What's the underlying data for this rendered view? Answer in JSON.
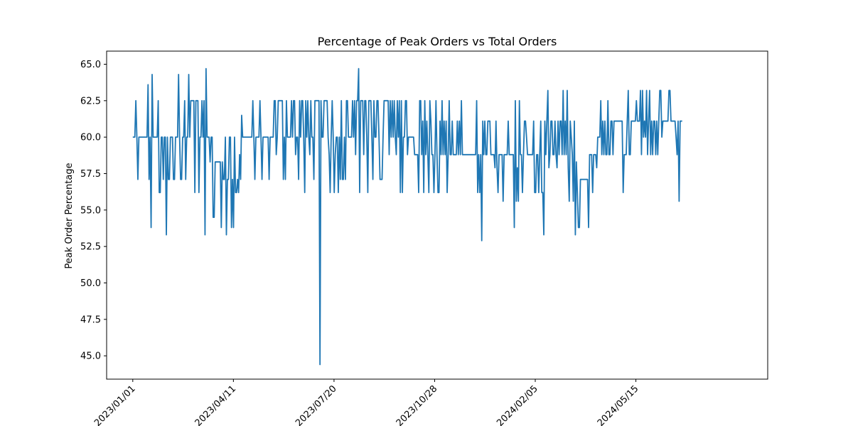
{
  "chart_data": {
    "type": "line",
    "title": "Percentage of Peak Orders vs Total Orders",
    "xlabel": "",
    "ylabel": "Peak Order Percentage",
    "xlim": [
      "2022-12-06",
      "2024-09-23"
    ],
    "ylim": [
      43.4,
      65.9
    ],
    "grid": false,
    "line_color": "#1f77b4",
    "x_ticks": [
      "2023/01/01",
      "2023/04/11",
      "2023/07/20",
      "2023/10/28",
      "2024/02/05",
      "2024/05/15"
    ],
    "y_ticks": [
      "45.0",
      "47.5",
      "50.0",
      "52.5",
      "55.0",
      "57.5",
      "60.0",
      "62.5",
      "65.0"
    ],
    "series": [
      {
        "x_start": "2023-01-01",
        "x_end": "2024-06-30",
        "frequency": "daily",
        "values": [
          60.0,
          60.0,
          60.0,
          62.5,
          60.0,
          57.1,
          60.0,
          60.0,
          60.0,
          60.0,
          60.0,
          60.0,
          60.0,
          60.0,
          60.0,
          63.6,
          57.1,
          60.0,
          53.8,
          64.3,
          60.0,
          60.0,
          60.0,
          60.0,
          60.0,
          62.5,
          56.2,
          56.2,
          60.0,
          60.0,
          57.1,
          60.0,
          60.0,
          53.3,
          60.0,
          57.1,
          57.1,
          60.0,
          60.0,
          60.0,
          57.1,
          57.1,
          60.0,
          60.0,
          60.0,
          64.3,
          60.0,
          57.1,
          57.1,
          60.0,
          60.0,
          62.5,
          57.1,
          60.0,
          60.0,
          64.3,
          60.0,
          62.5,
          62.5,
          62.5,
          62.5,
          56.2,
          62.5,
          62.5,
          62.5,
          56.2,
          60.0,
          60.0,
          62.5,
          60.0,
          62.5,
          53.3,
          64.7,
          60.0,
          60.0,
          60.0,
          58.3,
          60.0,
          60.0,
          54.5,
          54.5,
          58.3,
          58.3,
          58.3,
          58.3,
          58.3,
          58.3,
          53.8,
          58.3,
          57.1,
          57.1,
          60.0,
          53.3,
          57.1,
          57.1,
          60.0,
          60.0,
          53.8,
          57.1,
          53.8,
          60.0,
          56.2,
          56.2,
          57.1,
          56.2,
          58.8,
          57.1,
          61.5,
          60.0,
          60.0,
          60.0,
          60.0,
          60.0,
          60.0,
          60.0,
          60.0,
          60.0,
          60.0,
          62.5,
          60.0,
          57.1,
          60.0,
          60.0,
          60.0,
          60.0,
          62.5,
          60.0,
          57.1,
          60.0,
          60.0,
          60.0,
          60.0,
          60.0,
          60.0,
          57.1,
          60.0,
          60.0,
          60.0,
          60.0,
          62.5,
          62.5,
          58.8,
          60.0,
          62.5,
          62.5,
          62.5,
          62.5,
          62.5,
          57.1,
          60.0,
          57.1,
          62.5,
          60.0,
          60.0,
          60.0,
          60.0,
          62.5,
          60.0,
          62.5,
          62.5,
          58.8,
          60.0,
          60.0,
          57.1,
          62.5,
          60.0,
          62.5,
          62.5,
          60.0,
          56.2,
          62.5,
          60.0,
          62.5,
          60.0,
          58.8,
          62.5,
          60.0,
          60.0,
          57.1,
          62.5,
          62.5,
          62.5,
          62.5,
          62.5,
          44.4,
          62.5,
          60.0,
          60.0,
          62.5,
          62.5,
          62.5,
          62.5,
          60.0,
          58.8,
          56.2,
          60.0,
          62.5,
          60.0,
          56.2,
          58.8,
          60.0,
          60.0,
          56.2,
          60.0,
          57.1,
          62.5,
          57.1,
          57.1,
          60.0,
          57.1,
          62.5,
          62.5,
          60.0,
          60.0,
          60.0,
          60.0,
          62.5,
          60.0,
          62.5,
          58.8,
          62.5,
          62.5,
          64.7,
          56.2,
          62.5,
          62.5,
          62.5,
          58.8,
          62.5,
          62.5,
          60.0,
          56.2,
          62.5,
          62.5,
          62.5,
          60.0,
          57.1,
          62.5,
          60.0,
          60.0,
          62.5,
          62.5,
          60.0,
          57.1,
          57.1,
          57.1,
          60.0,
          62.5,
          62.5,
          62.5,
          62.5,
          62.5,
          58.8,
          62.5,
          60.0,
          62.5,
          60.0,
          62.5,
          60.0,
          58.8,
          62.5,
          60.0,
          62.5,
          56.2,
          62.5,
          56.2,
          60.0,
          60.0,
          62.5,
          62.5,
          58.8,
          60.0,
          60.0,
          60.0,
          60.0,
          60.0,
          60.0,
          58.8,
          58.8,
          58.8,
          58.8,
          56.2,
          62.5,
          62.5,
          58.8,
          61.1,
          56.2,
          62.5,
          58.8,
          61.1,
          58.8,
          56.2,
          62.5,
          61.1,
          58.8,
          58.8,
          56.2,
          58.8,
          62.5,
          58.8,
          56.2,
          56.2,
          61.1,
          58.8,
          62.5,
          58.8,
          61.1,
          58.8,
          61.1,
          56.2,
          58.8,
          62.5,
          58.8,
          58.8,
          61.1,
          58.8,
          58.8,
          58.8,
          58.8,
          61.1,
          58.8,
          61.1,
          58.8,
          62.5,
          58.8,
          58.8,
          58.8,
          58.8,
          58.8,
          58.8,
          58.8,
          58.8,
          58.8,
          58.8,
          58.8,
          58.8,
          58.8,
          58.8,
          62.5,
          56.2,
          58.8,
          56.2,
          58.8,
          52.9,
          61.1,
          58.8,
          61.1,
          58.8,
          58.8,
          61.1,
          61.1,
          61.1,
          58.8,
          58.8,
          58.8,
          58.8,
          57.9,
          61.1,
          57.9,
          56.2,
          58.8,
          58.8,
          58.8,
          58.8,
          55.6,
          58.8,
          58.8,
          58.8,
          58.8,
          61.1,
          58.8,
          58.8,
          58.8,
          58.8,
          58.8,
          53.8,
          62.5,
          55.6,
          57.9,
          55.6,
          62.5,
          58.8,
          58.8,
          56.2,
          58.8,
          61.1,
          61.1,
          60.0,
          58.8,
          58.8,
          58.8,
          58.8,
          58.8,
          58.8,
          61.1,
          56.2,
          56.2,
          58.8,
          58.8,
          56.2,
          58.8,
          61.1,
          56.2,
          56.2,
          53.3,
          61.1,
          58.8,
          61.1,
          63.2,
          57.9,
          58.8,
          61.1,
          61.1,
          58.8,
          58.8,
          61.1,
          58.8,
          57.9,
          61.1,
          58.8,
          61.1,
          61.1,
          58.8,
          63.2,
          58.8,
          61.1,
          58.8,
          63.2,
          57.9,
          55.6,
          61.1,
          60.0,
          58.8,
          55.6,
          61.1,
          53.3,
          58.3,
          56.2,
          53.8,
          53.8,
          57.1,
          57.1,
          57.1,
          57.1,
          57.1,
          57.1,
          57.1,
          57.1,
          53.8,
          58.8,
          58.8,
          58.8,
          56.2,
          58.8,
          58.8,
          58.8,
          57.9,
          60.0,
          60.0,
          60.0,
          62.5,
          58.8,
          61.1,
          58.8,
          61.1,
          58.8,
          58.8,
          62.5,
          58.8,
          58.8,
          61.1,
          61.1,
          58.8,
          61.1,
          61.1,
          61.1,
          61.1,
          61.1,
          61.1,
          61.1,
          61.1,
          61.1,
          56.2,
          58.8,
          58.8,
          58.8,
          61.1,
          63.2,
          58.8,
          58.8,
          61.1,
          61.1,
          61.1,
          61.1,
          61.1,
          62.5,
          61.1,
          61.1,
          61.1,
          63.2,
          58.8,
          63.2,
          60.0,
          61.1,
          60.0,
          63.2,
          58.8,
          61.1,
          63.2,
          58.8,
          61.1,
          58.8,
          61.1,
          61.1,
          58.8,
          61.1,
          58.8,
          61.1,
          63.2,
          63.2,
          60.0,
          61.1,
          61.1,
          61.1,
          61.1,
          61.1,
          61.1,
          63.2,
          63.2,
          61.1,
          61.1,
          61.1,
          61.1,
          61.1,
          60.0,
          58.8,
          61.1,
          55.6,
          61.1,
          61.1,
          61.1
        ]
      }
    ]
  }
}
